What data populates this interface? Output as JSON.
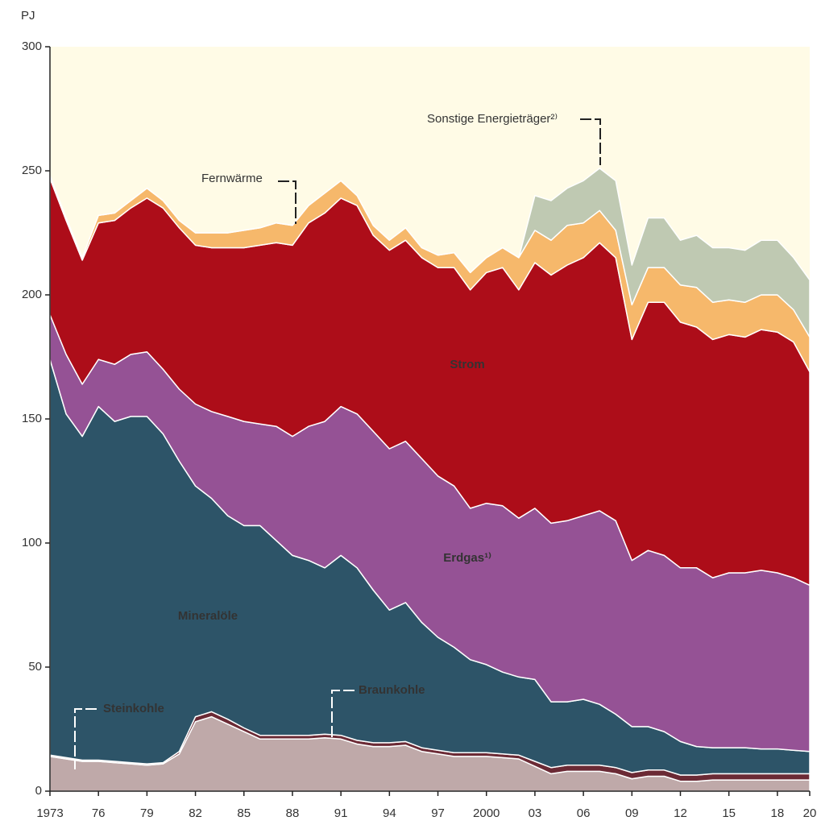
{
  "chart_data": {
    "type": "stacked-area",
    "y_unit": "PJ",
    "x": [
      1973,
      1974,
      1975,
      1976,
      1977,
      1978,
      1979,
      1980,
      1981,
      1982,
      1983,
      1984,
      1985,
      1986,
      1987,
      1988,
      1989,
      1990,
      1991,
      1992,
      1993,
      1994,
      1995,
      1996,
      1997,
      1998,
      1999,
      2000,
      2001,
      2002,
      2003,
      2004,
      2005,
      2006,
      2007,
      2008,
      2009,
      2010,
      2011,
      2012,
      2013,
      2014,
      2015,
      2016,
      2017,
      2018,
      2019,
      2020
    ],
    "xlim": [
      1973,
      2020
    ],
    "xticks": [
      1973,
      {
        "value": 1976,
        "label": "76"
      },
      {
        "value": 1979,
        "label": "79"
      },
      {
        "value": 1982,
        "label": "82"
      },
      {
        "value": 1985,
        "label": "85"
      },
      {
        "value": 1988,
        "label": "88"
      },
      {
        "value": 1991,
        "label": "91"
      },
      {
        "value": 1994,
        "label": "94"
      },
      {
        "value": 1997,
        "label": "97"
      },
      2000,
      {
        "value": 2003,
        "label": "03"
      },
      {
        "value": 2006,
        "label": "06"
      },
      {
        "value": 2009,
        "label": "09"
      },
      {
        "value": 2012,
        "label": "12"
      },
      {
        "value": 2015,
        "label": "15"
      },
      {
        "value": 2018,
        "label": "18"
      },
      {
        "value": 2020,
        "label": "20"
      }
    ],
    "ylim": [
      0,
      300
    ],
    "yticks": [
      0,
      50,
      100,
      150,
      200,
      250,
      300
    ],
    "series": [
      {
        "name": "Steinkohle",
        "color": "#bfa9a9",
        "values": [
          14,
          13,
          12,
          12,
          11.5,
          11,
          10.5,
          11,
          15,
          28,
          30,
          27,
          24,
          21,
          21,
          21,
          21,
          21.5,
          21,
          19,
          18,
          18,
          18.5,
          16,
          15,
          14,
          14,
          14,
          13.5,
          13,
          10,
          7,
          8,
          8,
          8,
          7,
          5,
          6,
          6,
          4,
          4,
          4.5,
          4.5,
          4.5,
          4.5,
          4.5,
          4.5,
          4.5
        ]
      },
      {
        "name": "Braunkohle",
        "color": "#6b2a35",
        "values": [
          0.5,
          0.5,
          0.5,
          0.5,
          0.5,
          0.5,
          0.5,
          0.5,
          1,
          2,
          2,
          2,
          1.5,
          1.5,
          1.5,
          1.5,
          1.5,
          1.5,
          1.5,
          1.5,
          1.5,
          1.5,
          1.5,
          1.5,
          1.5,
          1.5,
          1.5,
          1.5,
          1.5,
          1.5,
          2,
          2.5,
          2.5,
          2.5,
          2.5,
          2.5,
          2.5,
          2.5,
          2.5,
          2.5,
          2.5,
          2.5,
          2.5,
          2.5,
          2.5,
          2.5,
          2.5,
          2.5
        ]
      },
      {
        "name": "Mineralöle",
        "color": "#2d5468",
        "values": [
          159.5,
          138.5,
          130.5,
          142.5,
          137,
          139.5,
          140,
          132.5,
          117,
          93,
          86,
          82,
          81.5,
          84.5,
          78.5,
          72.5,
          70.5,
          67,
          72.5,
          69.5,
          61.5,
          53.5,
          56,
          50.5,
          45.5,
          42.5,
          37.5,
          35.5,
          33,
          31.5,
          33,
          26.5,
          25.5,
          26.5,
          24.5,
          21.5,
          18.5,
          17.5,
          15.5,
          13.5,
          11.5,
          10.5,
          10.5,
          10.5,
          10,
          10,
          9.5,
          9
        ]
      },
      {
        "name": "Erdgas¹⁾",
        "color": "#955295",
        "values": [
          18,
          24,
          21,
          19,
          23,
          25,
          26,
          26,
          29,
          33,
          35,
          40,
          42,
          41,
          46,
          48,
          54,
          59,
          60,
          62,
          64,
          65,
          65,
          66,
          65,
          65,
          61,
          65,
          67,
          64,
          69,
          72,
          73,
          74,
          78,
          78,
          67,
          71,
          71,
          70,
          72,
          68.5,
          70.5,
          70.5,
          72,
          71,
          69.5,
          67
        ]
      },
      {
        "name": "Strom",
        "color": "#ad0d19",
        "values": [
          55,
          54,
          50,
          55,
          58,
          59,
          62,
          65,
          65,
          64,
          66,
          68,
          70,
          72,
          74,
          77,
          82,
          84,
          84,
          84,
          79,
          80,
          81,
          81,
          84,
          88,
          88,
          93,
          96,
          92,
          99,
          100,
          103,
          104,
          108,
          106,
          89,
          100,
          102,
          99,
          97,
          96,
          96,
          95,
          97,
          97,
          95,
          86
        ]
      },
      {
        "name": "Fernwärme",
        "color": "#f6b86b",
        "values": [
          1,
          1,
          1,
          3,
          3,
          3,
          4,
          3,
          3,
          5,
          6,
          6,
          7,
          7,
          8,
          8,
          7,
          8,
          7,
          4,
          4,
          4,
          5,
          4,
          5,
          6,
          7,
          6,
          8,
          13,
          13,
          14,
          16,
          14,
          13,
          11,
          14,
          14,
          14,
          15,
          16,
          15,
          14,
          14,
          14,
          15,
          13,
          14
        ]
      },
      {
        "name": "Sonstige Energieträger²⁾",
        "color": "#bfc9b2",
        "values": [
          0,
          0,
          0,
          0,
          0,
          0,
          0,
          0,
          0,
          0,
          0,
          0,
          0,
          0,
          0,
          0,
          0,
          0,
          0,
          0,
          0,
          0,
          0,
          0,
          0,
          0,
          0,
          0,
          0,
          0,
          14,
          16,
          15,
          17,
          17,
          20,
          16,
          20,
          20,
          18,
          21,
          22,
          21,
          21,
          22,
          22,
          21,
          23
        ]
      }
    ],
    "background": "#fffbe6"
  }
}
